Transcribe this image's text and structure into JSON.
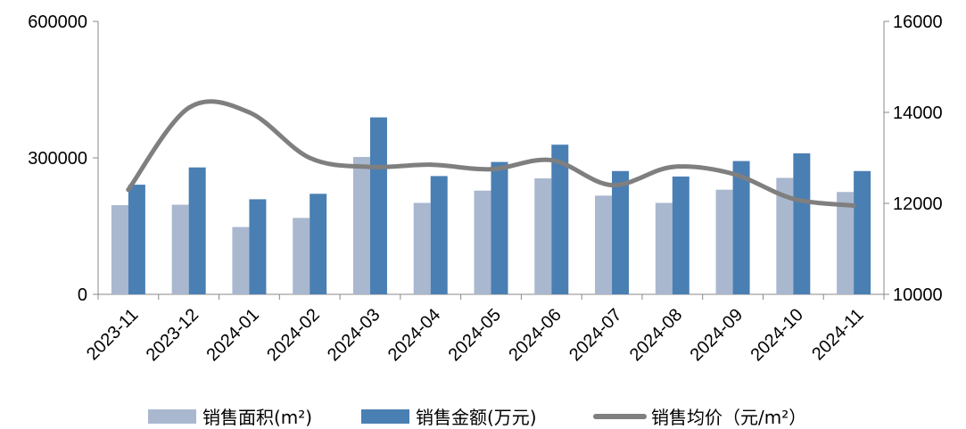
{
  "chart_data": {
    "type": "bar",
    "categories": [
      "2023-11",
      "2023-12",
      "2024-01",
      "2024-02",
      "2024-03",
      "2024-04",
      "2024-05",
      "2024-06",
      "2024-07",
      "2024-08",
      "2024-09",
      "2024-10",
      "2024-11"
    ],
    "series": [
      {
        "name": "销售面积(m²)",
        "type": "bar",
        "axis": "left",
        "color": "#a9b8cf",
        "values": [
          196000,
          197000,
          148000,
          168000,
          302000,
          201000,
          228000,
          255000,
          217000,
          201000,
          230000,
          256000,
          225000
        ]
      },
      {
        "name": "销售金额(万元)",
        "type": "bar",
        "axis": "left",
        "color": "#4a7fb3",
        "values": [
          241000,
          279000,
          209000,
          221000,
          389000,
          260000,
          291000,
          329000,
          271000,
          259000,
          293000,
          310000,
          271000
        ]
      },
      {
        "name": "销售均价（元/m²）",
        "type": "line",
        "axis": "right",
        "color": "#7f7f7f",
        "values": [
          12300,
          14100,
          14000,
          13000,
          12800,
          12850,
          12750,
          12950,
          12400,
          12800,
          12650,
          12100,
          11950
        ]
      }
    ],
    "y_left": {
      "min": 0,
      "max": 600000,
      "ticks": [
        0,
        300000,
        600000
      ]
    },
    "y_right": {
      "min": 10000,
      "max": 16000,
      "ticks": [
        10000,
        12000,
        14000,
        16000
      ]
    },
    "grid": false,
    "legend_position": "bottom"
  }
}
